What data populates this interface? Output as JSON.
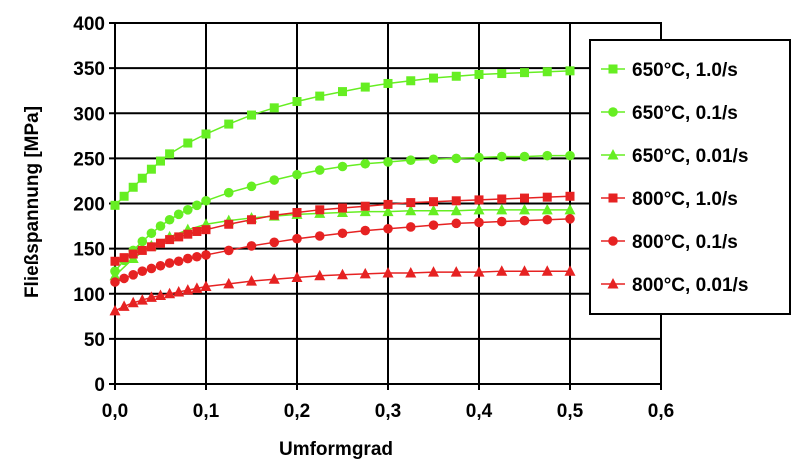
{
  "chart_data": {
    "type": "line",
    "xlabel": "Umformgrad",
    "ylabel": "Fließspannung [MPa]",
    "xlim": [
      0,
      0.6
    ],
    "ylim": [
      0,
      400
    ],
    "x_ticks": [
      "0,0",
      "0,1",
      "0,2",
      "0,3",
      "0,4",
      "0,5",
      "0,6"
    ],
    "y_ticks": [
      "0",
      "50",
      "100",
      "150",
      "200",
      "250",
      "300",
      "350",
      "400"
    ],
    "grid": true,
    "legend_position": "right",
    "series": [
      {
        "name": "650°C, 1.0/s",
        "color": "#66ee22",
        "marker": "square",
        "x": [
          0.0,
          0.01,
          0.02,
          0.03,
          0.04,
          0.05,
          0.06,
          0.08,
          0.1,
          0.125,
          0.15,
          0.175,
          0.2,
          0.225,
          0.25,
          0.275,
          0.3,
          0.325,
          0.35,
          0.375,
          0.4,
          0.425,
          0.45,
          0.475,
          0.5
        ],
        "y": [
          198,
          208,
          218,
          228,
          238,
          247,
          255,
          267,
          277,
          288,
          298,
          306,
          313,
          319,
          324,
          329,
          333,
          336,
          339,
          341,
          343,
          344,
          345,
          346,
          347
        ]
      },
      {
        "name": "650°C, 0.1/s",
        "color": "#66ee22",
        "marker": "circle",
        "x": [
          0.0,
          0.01,
          0.02,
          0.03,
          0.04,
          0.05,
          0.06,
          0.07,
          0.08,
          0.09,
          0.1,
          0.125,
          0.15,
          0.175,
          0.2,
          0.225,
          0.25,
          0.275,
          0.3,
          0.325,
          0.35,
          0.375,
          0.4,
          0.425,
          0.45,
          0.475,
          0.5
        ],
        "y": [
          125,
          137,
          148,
          158,
          167,
          175,
          182,
          188,
          193,
          198,
          203,
          212,
          219,
          226,
          232,
          237,
          241,
          244,
          246,
          248,
          249,
          250,
          251,
          252,
          252,
          253,
          253
        ]
      },
      {
        "name": "650°C, 0.01/s",
        "color": "#66ee22",
        "marker": "triangle",
        "x": [
          0.0,
          0.02,
          0.04,
          0.06,
          0.08,
          0.1,
          0.125,
          0.15,
          0.175,
          0.2,
          0.225,
          0.25,
          0.275,
          0.3,
          0.325,
          0.35,
          0.375,
          0.4,
          0.425,
          0.45,
          0.475,
          0.5
        ],
        "y": [
          120,
          139,
          153,
          163,
          171,
          177,
          181,
          184,
          186,
          188,
          189,
          190,
          191,
          191,
          192,
          192,
          192,
          193,
          193,
          193,
          193,
          193
        ]
      },
      {
        "name": "800°C, 1.0/s",
        "color": "#e62222",
        "marker": "square",
        "x": [
          0.0,
          0.01,
          0.02,
          0.03,
          0.04,
          0.05,
          0.06,
          0.07,
          0.08,
          0.09,
          0.1,
          0.125,
          0.15,
          0.175,
          0.2,
          0.225,
          0.25,
          0.275,
          0.3,
          0.325,
          0.35,
          0.375,
          0.4,
          0.425,
          0.45,
          0.475,
          0.5
        ],
        "y": [
          136,
          140,
          144,
          148,
          152,
          156,
          160,
          163,
          166,
          169,
          171,
          177,
          182,
          187,
          190,
          193,
          195,
          197,
          199,
          201,
          202,
          203,
          204,
          205,
          206,
          207,
          208
        ]
      },
      {
        "name": "800°C, 0.1/s",
        "color": "#e62222",
        "marker": "circle",
        "x": [
          0.0,
          0.01,
          0.02,
          0.03,
          0.04,
          0.05,
          0.06,
          0.07,
          0.08,
          0.09,
          0.1,
          0.125,
          0.15,
          0.175,
          0.2,
          0.225,
          0.25,
          0.275,
          0.3,
          0.325,
          0.35,
          0.375,
          0.4,
          0.425,
          0.45,
          0.475,
          0.5
        ],
        "y": [
          113,
          117,
          121,
          125,
          128,
          131,
          134,
          136,
          139,
          141,
          143,
          148,
          153,
          157,
          161,
          164,
          167,
          170,
          172,
          174,
          176,
          178,
          179,
          180,
          181,
          182,
          183
        ]
      },
      {
        "name": "800°C, 0.01/s",
        "color": "#e62222",
        "marker": "triangle",
        "x": [
          0.0,
          0.01,
          0.02,
          0.03,
          0.04,
          0.05,
          0.06,
          0.07,
          0.08,
          0.09,
          0.1,
          0.125,
          0.15,
          0.175,
          0.2,
          0.225,
          0.25,
          0.275,
          0.3,
          0.325,
          0.35,
          0.375,
          0.4,
          0.425,
          0.45,
          0.475,
          0.5
        ],
        "y": [
          81,
          86,
          90,
          93,
          96,
          98,
          100,
          102,
          104,
          106,
          108,
          111,
          114,
          116,
          118,
          120,
          121,
          122,
          123,
          123,
          124,
          124,
          124,
          125,
          125,
          125,
          125
        ]
      }
    ]
  }
}
